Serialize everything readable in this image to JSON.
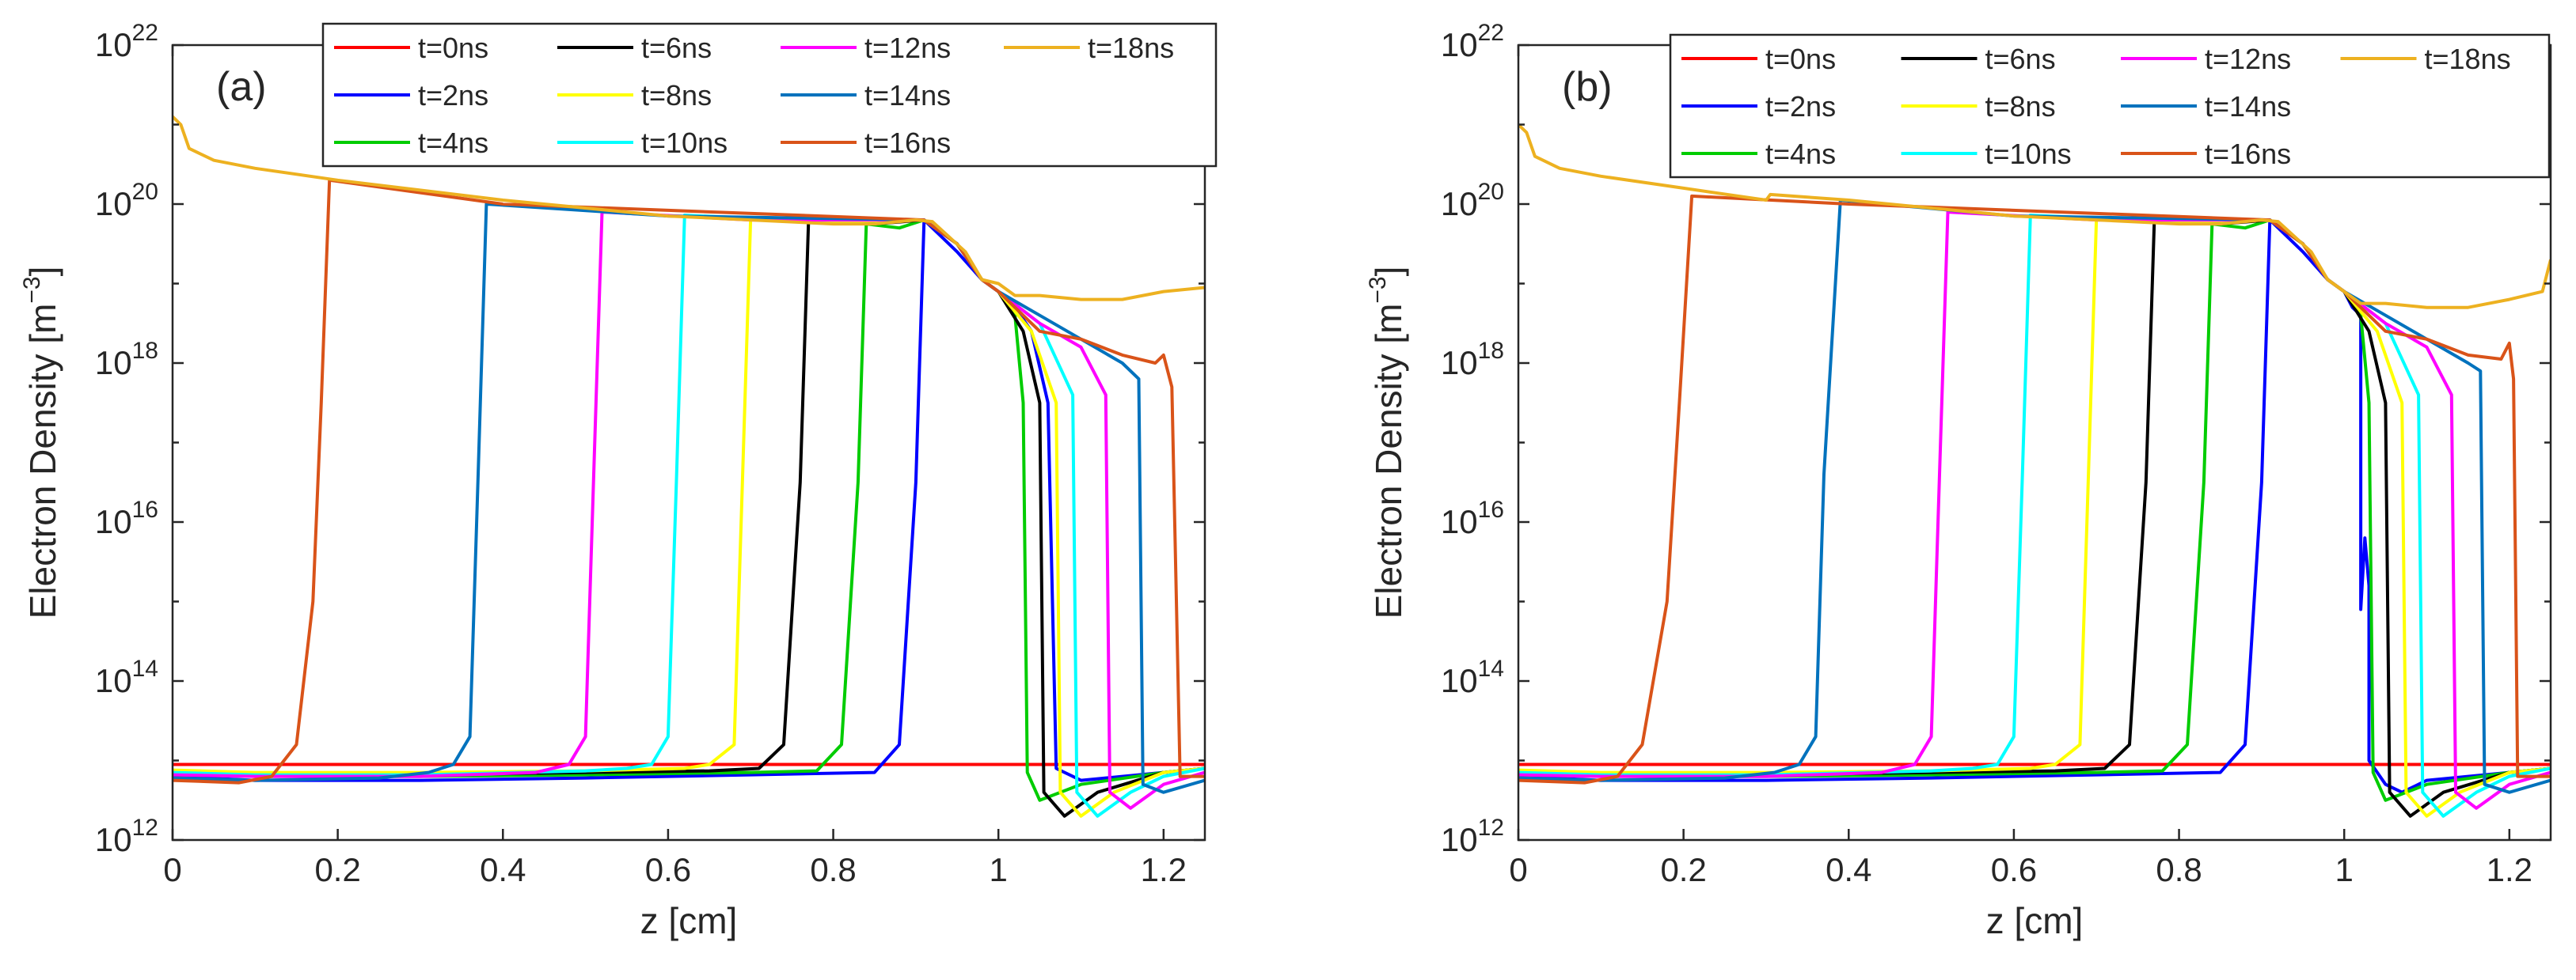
{
  "chart_data": [
    {
      "type": "line",
      "panel_label": "(a)",
      "xlabel": "z [cm]",
      "ylabel_main": "Electron Density [m",
      "ylabel_exp": "−3",
      "ylabel_close": "]",
      "y_scale": "log",
      "xlim": [
        0,
        1.25
      ],
      "ylim": [
        1000000000000.0,
        1e+22
      ],
      "x_ticks": [
        0,
        0.2,
        0.4,
        0.6,
        0.8,
        1,
        1.2
      ],
      "x_tick_labels": [
        "0",
        "0.2",
        "0.4",
        "0.6",
        "0.8",
        "1",
        "1.2"
      ],
      "y_ticks": [
        12,
        14,
        16,
        18,
        20,
        22
      ],
      "y_tick_base": "10",
      "y_tick_exps": [
        "12",
        "14",
        "16",
        "18",
        "20",
        "22"
      ],
      "legend_position": "top-right",
      "series": [
        {
          "name": "t=0ns",
          "color": "#ff0000",
          "x": [
            0,
            1.25
          ],
          "log10_y": [
            12.95,
            12.95
          ]
        },
        {
          "name": "t=2ns",
          "color": "#0000ff",
          "x": [
            0,
            0.1,
            0.3,
            0.5,
            0.7,
            0.85,
            0.88,
            0.9,
            0.91,
            0.95,
            0.98,
            1.0,
            1.02,
            1.04,
            1.06,
            1.07,
            1.1,
            1.15,
            1.2,
            1.25
          ],
          "log10_y": [
            12.8,
            12.75,
            12.75,
            12.78,
            12.82,
            12.85,
            13.2,
            16.5,
            19.8,
            19.4,
            19.05,
            18.9,
            18.7,
            18.4,
            17.5,
            12.9,
            12.75,
            12.8,
            12.85,
            12.9
          ]
        },
        {
          "name": "t=4ns",
          "color": "#00cc00",
          "x": [
            0,
            0.1,
            0.3,
            0.5,
            0.7,
            0.78,
            0.81,
            0.83,
            0.84,
            0.88,
            0.91,
            0.95,
            0.98,
            1.0,
            1.02,
            1.03,
            1.035,
            1.05,
            1.1,
            1.2,
            1.25
          ],
          "log10_y": [
            12.82,
            12.8,
            12.8,
            12.82,
            12.85,
            12.87,
            13.2,
            16.5,
            19.75,
            19.7,
            19.8,
            19.5,
            19.05,
            18.9,
            18.6,
            17.5,
            12.85,
            12.5,
            12.7,
            12.85,
            12.9
          ]
        },
        {
          "name": "t=6ns",
          "color": "#000000",
          "x": [
            0,
            0.1,
            0.3,
            0.5,
            0.65,
            0.71,
            0.74,
            0.76,
            0.77,
            0.85,
            0.91,
            0.95,
            0.98,
            1.0,
            1.03,
            1.05,
            1.055,
            1.08,
            1.12,
            1.2,
            1.25
          ],
          "log10_y": [
            12.85,
            12.82,
            12.82,
            12.85,
            12.87,
            12.9,
            13.2,
            16.5,
            19.78,
            19.75,
            19.8,
            19.5,
            19.05,
            18.9,
            18.4,
            17.5,
            12.6,
            12.3,
            12.6,
            12.85,
            12.9
          ]
        },
        {
          "name": "t=8ns",
          "color": "#ffff00",
          "x": [
            0,
            0.1,
            0.3,
            0.5,
            0.62,
            0.65,
            0.68,
            0.69,
            0.7,
            0.8,
            0.91,
            0.95,
            0.98,
            1.0,
            1.04,
            1.07,
            1.075,
            1.1,
            1.14,
            1.2,
            1.25
          ],
          "log10_y": [
            12.88,
            12.85,
            12.85,
            12.87,
            12.9,
            12.95,
            13.2,
            16.5,
            19.82,
            19.78,
            19.8,
            19.5,
            19.05,
            18.9,
            18.4,
            17.5,
            12.6,
            12.3,
            12.6,
            12.85,
            12.9
          ]
        },
        {
          "name": "t=10ns",
          "color": "#00ffff",
          "x": [
            0,
            0.1,
            0.3,
            0.5,
            0.55,
            0.58,
            0.6,
            0.61,
            0.62,
            0.75,
            0.91,
            0.95,
            0.98,
            1.0,
            1.05,
            1.09,
            1.095,
            1.12,
            1.16,
            1.2,
            1.25
          ],
          "log10_y": [
            12.85,
            12.82,
            12.82,
            12.87,
            12.9,
            12.95,
            13.3,
            16.5,
            19.86,
            19.8,
            19.8,
            19.5,
            19.05,
            18.9,
            18.5,
            17.6,
            12.6,
            12.3,
            12.6,
            12.8,
            12.9
          ]
        },
        {
          "name": "t=12ns",
          "color": "#ff00ff",
          "x": [
            0,
            0.1,
            0.3,
            0.44,
            0.48,
            0.5,
            0.51,
            0.52,
            0.7,
            0.91,
            0.95,
            0.98,
            1.0,
            1.05,
            1.1,
            1.13,
            1.135,
            1.16,
            1.2,
            1.25
          ],
          "log10_y": [
            12.82,
            12.8,
            12.8,
            12.85,
            12.95,
            13.3,
            16.6,
            19.9,
            19.8,
            19.8,
            19.5,
            19.05,
            18.9,
            18.5,
            18.2,
            17.6,
            12.6,
            12.4,
            12.7,
            12.85
          ]
        },
        {
          "name": "t=14ns",
          "color": "#0072bd",
          "x": [
            0,
            0.1,
            0.25,
            0.31,
            0.34,
            0.36,
            0.37,
            0.38,
            0.6,
            0.91,
            0.95,
            0.98,
            1.0,
            1.05,
            1.1,
            1.15,
            1.17,
            1.175,
            1.2,
            1.25
          ],
          "log10_y": [
            12.78,
            12.75,
            12.78,
            12.85,
            12.95,
            13.3,
            16.6,
            20.0,
            19.85,
            19.8,
            19.5,
            19.05,
            18.9,
            18.6,
            18.3,
            18.0,
            17.8,
            12.7,
            12.6,
            12.75
          ]
        },
        {
          "name": "t=16ns",
          "color": "#d95319",
          "x": [
            0,
            0.08,
            0.12,
            0.15,
            0.17,
            0.18,
            0.19,
            0.4,
            0.91,
            0.95,
            0.98,
            1.0,
            1.05,
            1.1,
            1.15,
            1.19,
            1.2,
            1.21,
            1.22,
            1.25
          ],
          "log10_y": [
            12.75,
            12.72,
            12.8,
            13.2,
            15.0,
            17.5,
            20.3,
            20.0,
            19.8,
            19.5,
            19.05,
            18.9,
            18.4,
            18.3,
            18.1,
            18.0,
            18.1,
            17.7,
            12.8,
            12.8
          ]
        },
        {
          "name": "t=18ns",
          "color": "#edb120",
          "x": [
            0,
            0.01,
            0.02,
            0.03,
            0.05,
            0.1,
            0.2,
            0.4,
            0.6,
            0.8,
            0.85,
            0.9,
            0.92,
            0.96,
            0.98,
            1.0,
            1.02,
            1.05,
            1.1,
            1.15,
            1.2,
            1.25
          ],
          "log10_y": [
            21.1,
            21.0,
            20.7,
            20.65,
            20.55,
            20.45,
            20.3,
            20.05,
            19.85,
            19.75,
            19.75,
            19.8,
            19.78,
            19.4,
            19.05,
            19.0,
            18.85,
            18.85,
            18.8,
            18.8,
            18.9,
            18.95
          ]
        }
      ]
    },
    {
      "type": "line",
      "panel_label": "(b)",
      "xlabel": "z [cm]",
      "ylabel_main": "Electron Density [m",
      "ylabel_exp": "−3",
      "ylabel_close": "]",
      "y_scale": "log",
      "xlim": [
        0,
        1.25
      ],
      "ylim": [
        1000000000000.0,
        1e+22
      ],
      "x_ticks": [
        0,
        0.2,
        0.4,
        0.6,
        0.8,
        1,
        1.2
      ],
      "x_tick_labels": [
        "0",
        "0.2",
        "0.4",
        "0.6",
        "0.8",
        "1",
        "1.2"
      ],
      "y_ticks": [
        12,
        14,
        16,
        18,
        20,
        22
      ],
      "y_tick_base": "10",
      "y_tick_exps": [
        "12",
        "14",
        "16",
        "18",
        "20",
        "22"
      ],
      "legend_position": "top-right",
      "series": [
        {
          "name": "t=0ns",
          "color": "#ff0000",
          "x": [
            0,
            1.25
          ],
          "log10_y": [
            12.95,
            12.95
          ]
        },
        {
          "name": "t=2ns",
          "color": "#0000ff",
          "x": [
            0,
            0.1,
            0.3,
            0.5,
            0.7,
            0.85,
            0.88,
            0.9,
            0.91,
            0.95,
            0.98,
            1.0,
            1.01,
            1.02,
            1.02,
            1.025,
            1.03,
            1.03,
            1.05,
            1.07,
            1.1,
            1.15,
            1.2,
            1.25
          ],
          "log10_y": [
            12.8,
            12.75,
            12.75,
            12.78,
            12.82,
            12.85,
            13.2,
            16.5,
            19.8,
            19.4,
            19.05,
            18.9,
            18.7,
            18.6,
            14.9,
            15.8,
            15.2,
            13.0,
            12.7,
            12.6,
            12.75,
            12.8,
            12.85,
            12.9
          ]
        },
        {
          "name": "t=4ns",
          "color": "#00cc00",
          "x": [
            0,
            0.1,
            0.3,
            0.5,
            0.7,
            0.78,
            0.81,
            0.83,
            0.84,
            0.88,
            0.91,
            0.95,
            0.98,
            1.0,
            1.02,
            1.03,
            1.035,
            1.05,
            1.1,
            1.2,
            1.25
          ],
          "log10_y": [
            12.82,
            12.8,
            12.8,
            12.82,
            12.85,
            12.87,
            13.2,
            16.5,
            19.75,
            19.7,
            19.8,
            19.5,
            19.05,
            18.9,
            18.6,
            17.5,
            12.85,
            12.5,
            12.7,
            12.85,
            12.9
          ]
        },
        {
          "name": "t=6ns",
          "color": "#000000",
          "x": [
            0,
            0.1,
            0.3,
            0.5,
            0.65,
            0.71,
            0.74,
            0.76,
            0.77,
            0.85,
            0.91,
            0.95,
            0.98,
            1.0,
            1.03,
            1.05,
            1.055,
            1.08,
            1.12,
            1.2,
            1.25
          ],
          "log10_y": [
            12.85,
            12.82,
            12.82,
            12.85,
            12.87,
            12.9,
            13.2,
            16.5,
            19.78,
            19.75,
            19.8,
            19.5,
            19.05,
            18.9,
            18.4,
            17.5,
            12.6,
            12.3,
            12.6,
            12.85,
            12.9
          ]
        },
        {
          "name": "t=8ns",
          "color": "#ffff00",
          "x": [
            0,
            0.1,
            0.3,
            0.5,
            0.62,
            0.65,
            0.68,
            0.69,
            0.7,
            0.8,
            0.91,
            0.95,
            0.98,
            1.0,
            1.04,
            1.07,
            1.075,
            1.1,
            1.14,
            1.2,
            1.25
          ],
          "log10_y": [
            12.88,
            12.85,
            12.85,
            12.87,
            12.9,
            12.95,
            13.2,
            16.5,
            19.82,
            19.78,
            19.8,
            19.5,
            19.05,
            18.9,
            18.4,
            17.5,
            12.6,
            12.3,
            12.6,
            12.85,
            12.9
          ]
        },
        {
          "name": "t=10ns",
          "color": "#00ffff",
          "x": [
            0,
            0.1,
            0.3,
            0.5,
            0.55,
            0.58,
            0.6,
            0.61,
            0.62,
            0.75,
            0.91,
            0.95,
            0.98,
            1.0,
            1.05,
            1.09,
            1.095,
            1.12,
            1.16,
            1.2,
            1.25
          ],
          "log10_y": [
            12.85,
            12.82,
            12.82,
            12.87,
            12.9,
            12.95,
            13.3,
            16.5,
            19.86,
            19.8,
            19.8,
            19.5,
            19.05,
            18.9,
            18.5,
            17.6,
            12.6,
            12.3,
            12.6,
            12.8,
            12.9
          ]
        },
        {
          "name": "t=12ns",
          "color": "#ff00ff",
          "x": [
            0,
            0.1,
            0.3,
            0.44,
            0.48,
            0.5,
            0.51,
            0.52,
            0.7,
            0.91,
            0.95,
            0.98,
            1.0,
            1.05,
            1.1,
            1.13,
            1.135,
            1.16,
            1.2,
            1.25
          ],
          "log10_y": [
            12.82,
            12.8,
            12.8,
            12.85,
            12.95,
            13.3,
            16.6,
            19.9,
            19.8,
            19.8,
            19.5,
            19.05,
            18.9,
            18.5,
            18.2,
            17.6,
            12.6,
            12.4,
            12.7,
            12.85
          ]
        },
        {
          "name": "t=14ns",
          "color": "#0072bd",
          "x": [
            0,
            0.1,
            0.25,
            0.31,
            0.34,
            0.36,
            0.37,
            0.39,
            0.6,
            0.91,
            0.95,
            0.98,
            1.0,
            1.05,
            1.1,
            1.15,
            1.165,
            1.17,
            1.2,
            1.25
          ],
          "log10_y": [
            12.78,
            12.75,
            12.78,
            12.85,
            12.95,
            13.3,
            16.6,
            20.05,
            19.85,
            19.8,
            19.5,
            19.05,
            18.9,
            18.6,
            18.3,
            18.0,
            17.9,
            12.7,
            12.6,
            12.75
          ]
        },
        {
          "name": "t=16ns",
          "color": "#d95319",
          "x": [
            0,
            0.08,
            0.12,
            0.15,
            0.18,
            0.195,
            0.21,
            0.4,
            0.91,
            0.95,
            0.98,
            1.0,
            1.05,
            1.1,
            1.15,
            1.19,
            1.2,
            1.205,
            1.21,
            1.25
          ],
          "log10_y": [
            12.75,
            12.72,
            12.8,
            13.2,
            15.0,
            17.5,
            20.1,
            20.0,
            19.8,
            19.5,
            19.05,
            18.9,
            18.4,
            18.3,
            18.1,
            18.05,
            18.25,
            17.8,
            12.8,
            12.8
          ]
        },
        {
          "name": "t=18ns",
          "color": "#edb120",
          "x": [
            0,
            0.01,
            0.02,
            0.03,
            0.05,
            0.1,
            0.2,
            0.3,
            0.305,
            0.4,
            0.6,
            0.8,
            0.85,
            0.9,
            0.92,
            0.96,
            0.98,
            1.0,
            1.02,
            1.05,
            1.1,
            1.15,
            1.2,
            1.24,
            1.25
          ],
          "log10_y": [
            21.0,
            20.9,
            20.6,
            20.55,
            20.45,
            20.35,
            20.2,
            20.05,
            20.12,
            20.05,
            19.85,
            19.75,
            19.75,
            19.8,
            19.78,
            19.4,
            19.05,
            18.9,
            18.75,
            18.75,
            18.7,
            18.7,
            18.8,
            18.9,
            19.3
          ]
        }
      ]
    }
  ]
}
